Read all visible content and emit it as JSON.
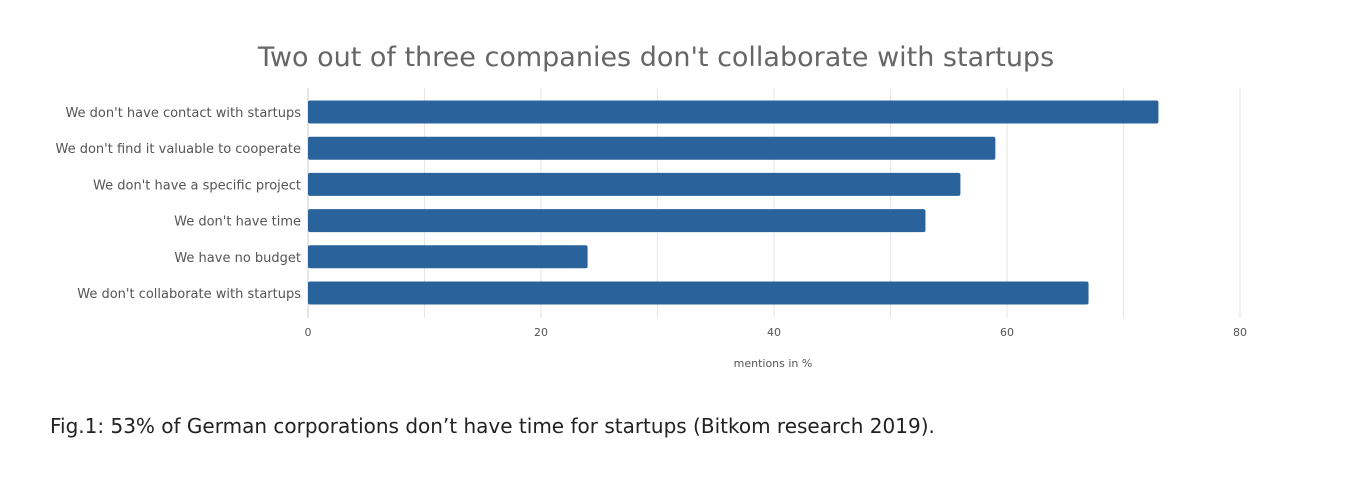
{
  "chart_data": {
    "type": "bar",
    "orientation": "horizontal",
    "title": "Two out of three companies don't collaborate with startups",
    "xlabel": "mentions in %",
    "ylabel": "",
    "categories": [
      "We don't have contact with startups",
      "We don't find it valuable to cooperate",
      "We don't have a specific project",
      "We don't have time",
      "We have no budget",
      "We don't collaborate with startups"
    ],
    "values": [
      73,
      59,
      56,
      53,
      24,
      67
    ],
    "xlim": [
      0,
      80
    ],
    "x_ticks": [
      0,
      20,
      40,
      60,
      80
    ],
    "grid": true,
    "legend": "none",
    "bar_color": "#2a639c",
    "grid_color": "#e6e6e6"
  },
  "caption": "Fig.1: 53% of German corporations don’t have time for startups (Bitkom research 2019)."
}
